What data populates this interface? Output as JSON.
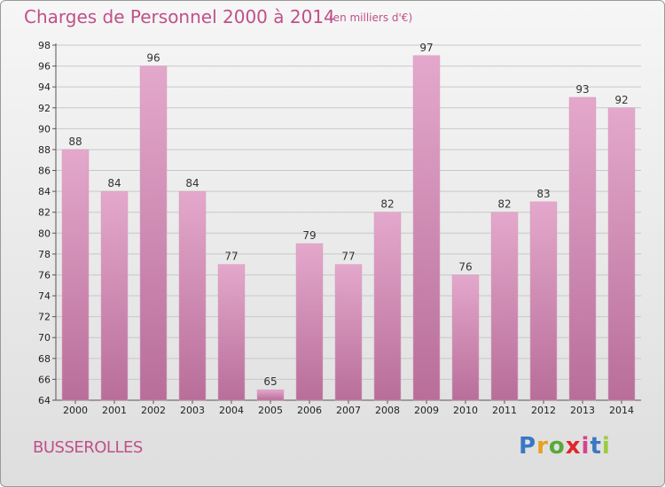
{
  "chart_title": "Charges de Personnel 2000 à 2014",
  "chart_unit": "(en milliers d'€)",
  "commune": "BUSSEROLLES",
  "brand": "Proxiti",
  "brand_colors": [
    "#3a78c4",
    "#e8a020",
    "#5aa83a",
    "#e2262b",
    "#d6448c",
    "#3a78c4",
    "#9ccc3a"
  ],
  "bar_gradient": [
    "#e4a8cc",
    "#b86e99"
  ],
  "chart_data": {
    "type": "bar",
    "title": "Charges de Personnel 2000 à 2014",
    "subtitle": "(en milliers d'€)",
    "xlabel": "",
    "ylabel": "",
    "categories": [
      "2000",
      "2001",
      "2002",
      "2003",
      "2004",
      "2005",
      "2006",
      "2007",
      "2008",
      "2009",
      "2010",
      "2011",
      "2012",
      "2013",
      "2014"
    ],
    "values": [
      88,
      84,
      96,
      84,
      77,
      65,
      79,
      77,
      82,
      97,
      76,
      82,
      83,
      93,
      92
    ],
    "ylim": [
      64,
      98
    ],
    "yticks": [
      64,
      66,
      68,
      70,
      72,
      74,
      76,
      78,
      80,
      82,
      84,
      86,
      88,
      90,
      92,
      94,
      96,
      98
    ],
    "grid": true,
    "data_labels": true
  }
}
